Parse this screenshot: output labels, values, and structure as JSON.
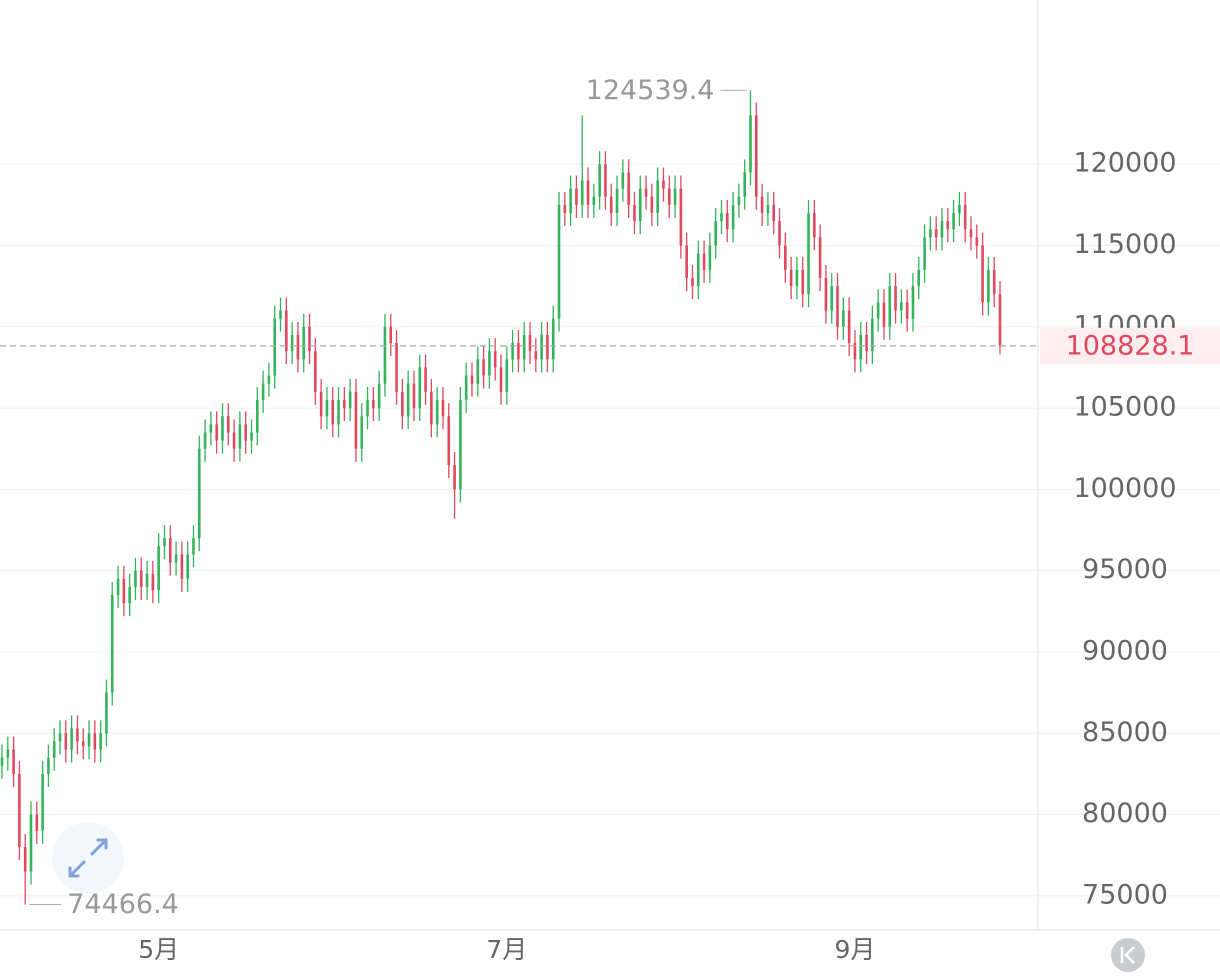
{
  "chart_data": {
    "type": "candlestick",
    "up_color": "#33b45a",
    "down_color": "#e0485e",
    "ylim": [
      72900,
      130100
    ],
    "yticks": [
      75000,
      80000,
      85000,
      90000,
      95000,
      100000,
      105000,
      110000,
      115000,
      120000
    ],
    "grid": true,
    "last_price": 108828.1,
    "categories": [
      null,
      null,
      null,
      null,
      null,
      null,
      null,
      null,
      null,
      null,
      null,
      null,
      null,
      null,
      null,
      null,
      null,
      null,
      null,
      null,
      null,
      null,
      null,
      null,
      null,
      null,
      null,
      "5月",
      null,
      null,
      null,
      null,
      null,
      null,
      null,
      null,
      null,
      null,
      null,
      null,
      null,
      null,
      null,
      null,
      null,
      null,
      null,
      null,
      null,
      null,
      null,
      null,
      null,
      null,
      null,
      null,
      null,
      null,
      null,
      null,
      null,
      null,
      null,
      null,
      null,
      null,
      null,
      null,
      null,
      null,
      null,
      null,
      null,
      null,
      null,
      null,
      null,
      null,
      null,
      null,
      null,
      null,
      null,
      null,
      null,
      null,
      null,
      "7月",
      null,
      null,
      null,
      null,
      null,
      null,
      null,
      null,
      null,
      null,
      null,
      null,
      null,
      null,
      null,
      null,
      null,
      null,
      null,
      null,
      null,
      null,
      null,
      null,
      null,
      null,
      null,
      null,
      null,
      null,
      null,
      null,
      null,
      null,
      null,
      null,
      null,
      null,
      null,
      null,
      null,
      null,
      null,
      null,
      null,
      null,
      null,
      null,
      null,
      null,
      null,
      null,
      null,
      null,
      null,
      null,
      null,
      null,
      null,
      "9月",
      null,
      null,
      null,
      null,
      null,
      null,
      null,
      null,
      null,
      null,
      null,
      null,
      null,
      null,
      null,
      null,
      null,
      null,
      null,
      null,
      null,
      null,
      null,
      null,
      null
    ],
    "candles": [
      [
        83000,
        84300,
        82200,
        83500
      ],
      [
        83500,
        84800,
        82700,
        84000
      ],
      [
        84000,
        84800,
        81700,
        82500
      ],
      [
        82500,
        83300,
        77200,
        78000
      ],
      [
        78000,
        78800,
        74466.4,
        76500
      ],
      [
        76500,
        80800,
        75700,
        80000
      ],
      [
        80000,
        80800,
        78200,
        79000
      ],
      [
        79000,
        83300,
        78200,
        82500
      ],
      [
        82500,
        84300,
        81700,
        83500
      ],
      [
        83500,
        85300,
        82700,
        84500
      ],
      [
        84500,
        85800,
        83700,
        85000
      ],
      [
        85000,
        85800,
        83200,
        84000
      ],
      [
        84000,
        86100,
        83200,
        85300
      ],
      [
        85300,
        86100,
        83700,
        84500
      ],
      [
        84500,
        85300,
        83400,
        84200
      ],
      [
        84200,
        85800,
        83400,
        85000
      ],
      [
        85000,
        85800,
        83200,
        84000
      ],
      [
        84000,
        85800,
        83200,
        85000
      ],
      [
        85000,
        88300,
        84200,
        87500
      ],
      [
        87500,
        94300,
        86700,
        93500
      ],
      [
        93500,
        95300,
        92700,
        94500
      ],
      [
        94500,
        95300,
        92200,
        93000
      ],
      [
        93000,
        94800,
        92200,
        94000
      ],
      [
        94000,
        95800,
        93200,
        95000
      ],
      [
        95000,
        95800,
        93200,
        94000
      ],
      [
        94000,
        95600,
        93200,
        94800
      ],
      [
        94800,
        95600,
        93000,
        93800
      ],
      [
        93800,
        97300,
        93000,
        96500
      ],
      [
        96500,
        97800,
        95700,
        97000
      ],
      [
        97000,
        97800,
        94700,
        95500
      ],
      [
        95500,
        96800,
        94700,
        96000
      ],
      [
        96000,
        96800,
        93700,
        94500
      ],
      [
        94500,
        96800,
        93700,
        96000
      ],
      [
        96000,
        97800,
        95200,
        97000
      ],
      [
        97000,
        103300,
        96200,
        102500
      ],
      [
        102500,
        104300,
        101700,
        103500
      ],
      [
        103500,
        104800,
        102700,
        104000
      ],
      [
        104000,
        104800,
        102200,
        103000
      ],
      [
        103000,
        105300,
        102200,
        104500
      ],
      [
        104500,
        105300,
        102700,
        103500
      ],
      [
        103500,
        104300,
        101700,
        102500
      ],
      [
        102500,
        104800,
        101700,
        104000
      ],
      [
        104000,
        104800,
        102200,
        103000
      ],
      [
        103000,
        104300,
        102200,
        103500
      ],
      [
        103500,
        106300,
        102700,
        105500
      ],
      [
        105500,
        107300,
        104700,
        106500
      ],
      [
        106500,
        107800,
        105700,
        107000
      ],
      [
        107000,
        111300,
        106200,
        110500
      ],
      [
        110500,
        111800,
        109700,
        111000
      ],
      [
        111000,
        111800,
        107700,
        108500
      ],
      [
        108500,
        110300,
        107700,
        109500
      ],
      [
        109500,
        110300,
        107200,
        108000
      ],
      [
        108000,
        110800,
        107200,
        110000
      ],
      [
        110000,
        110800,
        107700,
        108500
      ],
      [
        108500,
        109300,
        105200,
        106000
      ],
      [
        106000,
        106800,
        103700,
        104500
      ],
      [
        104500,
        106300,
        103700,
        105500
      ],
      [
        105500,
        106300,
        103200,
        104000
      ],
      [
        104000,
        106300,
        103200,
        105500
      ],
      [
        105500,
        106300,
        104200,
        105000
      ],
      [
        105000,
        106800,
        104200,
        106000
      ],
      [
        106000,
        106800,
        101700,
        102500
      ],
      [
        102500,
        105300,
        101700,
        104500
      ],
      [
        104500,
        106300,
        103700,
        105500
      ],
      [
        105500,
        106300,
        104200,
        105000
      ],
      [
        105000,
        107300,
        104200,
        106500
      ],
      [
        106500,
        110800,
        105700,
        110000
      ],
      [
        110000,
        110800,
        108200,
        109000
      ],
      [
        109000,
        109800,
        105200,
        106000
      ],
      [
        106000,
        106800,
        103700,
        104500
      ],
      [
        104500,
        107300,
        103700,
        106500
      ],
      [
        106500,
        107300,
        104200,
        105000
      ],
      [
        105000,
        108300,
        104200,
        107500
      ],
      [
        107500,
        108300,
        105200,
        106000
      ],
      [
        106000,
        106800,
        103200,
        104000
      ],
      [
        104000,
        106300,
        103200,
        105500
      ],
      [
        105500,
        106300,
        103700,
        104500
      ],
      [
        104500,
        105300,
        100700,
        101500
      ],
      [
        101500,
        102300,
        98200,
        100000
      ],
      [
        100000,
        106300,
        99200,
        105500
      ],
      [
        105500,
        107800,
        104700,
        107000
      ],
      [
        107000,
        107800,
        105700,
        106500
      ],
      [
        106500,
        108800,
        105700,
        108000
      ],
      [
        108000,
        108800,
        106200,
        107000
      ],
      [
        107000,
        109300,
        106200,
        108500
      ],
      [
        108500,
        109300,
        106700,
        107500
      ],
      [
        107500,
        108300,
        105200,
        106000
      ],
      [
        106000,
        108800,
        105200,
        108000
      ],
      [
        108000,
        109800,
        107200,
        109000
      ],
      [
        109000,
        109800,
        107200,
        108000
      ],
      [
        108000,
        110300,
        107200,
        109500
      ],
      [
        109500,
        110300,
        107700,
        108500
      ],
      [
        108500,
        109300,
        107200,
        108000
      ],
      [
        108000,
        110300,
        107200,
        109500
      ],
      [
        109500,
        110300,
        107200,
        108000
      ],
      [
        108000,
        111300,
        107200,
        110500
      ],
      [
        110500,
        118300,
        109700,
        117500
      ],
      [
        117500,
        118300,
        116200,
        117000
      ],
      [
        117000,
        119300,
        116200,
        118500
      ],
      [
        118500,
        119300,
        116700,
        117500
      ],
      [
        117500,
        123000,
        116700,
        119000
      ],
      [
        119000,
        119800,
        116700,
        117500
      ],
      [
        117500,
        118800,
        116700,
        118000
      ],
      [
        118000,
        120800,
        117200,
        120000
      ],
      [
        120000,
        120800,
        117200,
        118000
      ],
      [
        118000,
        118800,
        116200,
        117000
      ],
      [
        117000,
        119300,
        116200,
        118500
      ],
      [
        118500,
        120300,
        117700,
        119500
      ],
      [
        119500,
        120300,
        116700,
        117500
      ],
      [
        117500,
        118300,
        115700,
        116500
      ],
      [
        116500,
        119300,
        115700,
        118500
      ],
      [
        118500,
        119300,
        117200,
        118000
      ],
      [
        118000,
        118800,
        116200,
        117000
      ],
      [
        117000,
        119800,
        116200,
        119000
      ],
      [
        119000,
        119800,
        117700,
        118500
      ],
      [
        118500,
        119300,
        116700,
        117500
      ],
      [
        117500,
        119300,
        116700,
        118500
      ],
      [
        118500,
        119300,
        114200,
        115000
      ],
      [
        115000,
        115800,
        112200,
        113000
      ],
      [
        113000,
        113800,
        111700,
        112500
      ],
      [
        112500,
        115300,
        111700,
        114500
      ],
      [
        114500,
        115300,
        112700,
        113500
      ],
      [
        113500,
        115800,
        112700,
        115000
      ],
      [
        115000,
        117300,
        114200,
        116500
      ],
      [
        116500,
        117800,
        115700,
        117000
      ],
      [
        117000,
        117800,
        115200,
        116000
      ],
      [
        116000,
        118300,
        115200,
        117500
      ],
      [
        117500,
        118800,
        116700,
        118000
      ],
      [
        118000,
        120300,
        117200,
        119500
      ],
      [
        119500,
        124539.4,
        118700,
        123000
      ],
      [
        123000,
        123800,
        117200,
        118000
      ],
      [
        118000,
        118800,
        116200,
        117000
      ],
      [
        117000,
        118300,
        116200,
        117500
      ],
      [
        117500,
        118300,
        115700,
        116500
      ],
      [
        116500,
        117300,
        114200,
        115000
      ],
      [
        115000,
        115800,
        112700,
        113500
      ],
      [
        113500,
        114300,
        111700,
        112500
      ],
      [
        112500,
        114300,
        111700,
        113500
      ],
      [
        113500,
        114300,
        111200,
        112000
      ],
      [
        112000,
        117800,
        111200,
        117000
      ],
      [
        117000,
        117800,
        114700,
        115500
      ],
      [
        115500,
        116300,
        112200,
        113000
      ],
      [
        113000,
        113800,
        110200,
        111000
      ],
      [
        111000,
        113300,
        110200,
        112500
      ],
      [
        112500,
        113300,
        109200,
        110000
      ],
      [
        110000,
        111800,
        109200,
        111000
      ],
      [
        111000,
        111800,
        108200,
        109000
      ],
      [
        109000,
        109800,
        107200,
        108000
      ],
      [
        108000,
        110300,
        107200,
        109500
      ],
      [
        109500,
        110300,
        107700,
        108500
      ],
      [
        108500,
        111300,
        107700,
        110500
      ],
      [
        110500,
        112300,
        109700,
        111500
      ],
      [
        111500,
        112300,
        109200,
        110000
      ],
      [
        110000,
        113300,
        109200,
        112500
      ],
      [
        112500,
        113300,
        110200,
        111000
      ],
      [
        111000,
        112300,
        110200,
        111500
      ],
      [
        111500,
        112300,
        109700,
        110500
      ],
      [
        110500,
        113300,
        109700,
        112500
      ],
      [
        112500,
        114300,
        111700,
        113500
      ],
      [
        113500,
        116300,
        112700,
        115500
      ],
      [
        115500,
        116800,
        114700,
        116000
      ],
      [
        116000,
        116800,
        114700,
        115500
      ],
      [
        115500,
        117300,
        114700,
        116500
      ],
      [
        116500,
        117300,
        115200,
        116000
      ],
      [
        116000,
        117800,
        115200,
        117000
      ],
      [
        117000,
        118300,
        116200,
        117500
      ],
      [
        117500,
        118300,
        115200,
        116000
      ],
      [
        116000,
        116800,
        114700,
        115500
      ],
      [
        115500,
        116300,
        114200,
        115000
      ],
      [
        115000,
        115800,
        110700,
        111500
      ],
      [
        111500,
        114300,
        110700,
        113500
      ],
      [
        113500,
        114300,
        111200,
        112000
      ],
      [
        112000,
        112800,
        108300,
        108828.1
      ]
    ]
  }
}
